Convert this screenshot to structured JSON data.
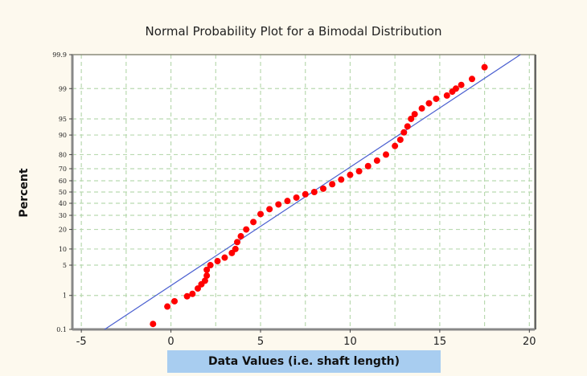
{
  "chart_data": {
    "type": "scatter",
    "title": "Normal Probability Plot for a Bimodal Distribution",
    "xlabel": "Data Values (i.e. shaft length)",
    "ylabel": "Percent",
    "y_scale": "normal-probability",
    "xlim": [
      -5.5,
      20.3
    ],
    "ylim": [
      0.1,
      99.9
    ],
    "x_ticks": [
      -5,
      0,
      5,
      10,
      15,
      20
    ],
    "y_ticks": [
      0.1,
      1,
      5,
      10,
      20,
      30,
      40,
      50,
      60,
      70,
      80,
      90,
      95,
      99,
      99.9
    ],
    "grid": true,
    "colors": {
      "points": "#ff0000",
      "fit_line": "#4a5fd0",
      "grid": "#b9d9b0",
      "background": "#fdf9ee",
      "xlabel_box": "#a8cdf0"
    },
    "fit_line": {
      "points": [
        [
          -3.7,
          0.1
        ],
        [
          19.5,
          99.9
        ]
      ]
    },
    "points": [
      [
        -1.0,
        0.15
      ],
      [
        -0.2,
        0.5
      ],
      [
        0.2,
        0.7
      ],
      [
        0.9,
        0.95
      ],
      [
        1.2,
        1.1
      ],
      [
        1.5,
        1.5
      ],
      [
        1.7,
        1.9
      ],
      [
        1.9,
        2.3
      ],
      [
        2.0,
        3
      ],
      [
        2.0,
        4
      ],
      [
        2.2,
        5
      ],
      [
        2.6,
        6
      ],
      [
        3.0,
        7
      ],
      [
        3.4,
        8.5
      ],
      [
        3.6,
        10
      ],
      [
        3.7,
        13
      ],
      [
        3.9,
        16
      ],
      [
        4.2,
        20
      ],
      [
        4.6,
        25
      ],
      [
        5.0,
        31
      ],
      [
        5.5,
        35
      ],
      [
        6.0,
        39
      ],
      [
        6.5,
        42
      ],
      [
        7.0,
        45
      ],
      [
        7.5,
        48
      ],
      [
        8.0,
        50
      ],
      [
        8.5,
        53
      ],
      [
        9.0,
        57
      ],
      [
        9.5,
        61
      ],
      [
        10.0,
        65
      ],
      [
        10.5,
        68
      ],
      [
        11.0,
        72
      ],
      [
        11.5,
        76
      ],
      [
        12.0,
        80
      ],
      [
        12.5,
        85
      ],
      [
        12.8,
        88
      ],
      [
        13.0,
        91
      ],
      [
        13.2,
        93
      ],
      [
        13.4,
        95
      ],
      [
        13.6,
        96
      ],
      [
        14.0,
        97
      ],
      [
        14.4,
        97.7
      ],
      [
        14.8,
        98.2
      ],
      [
        15.4,
        98.5
      ],
      [
        15.7,
        98.8
      ],
      [
        15.9,
        99.0
      ],
      [
        16.2,
        99.2
      ],
      [
        16.8,
        99.45
      ],
      [
        17.5,
        99.75
      ]
    ]
  }
}
